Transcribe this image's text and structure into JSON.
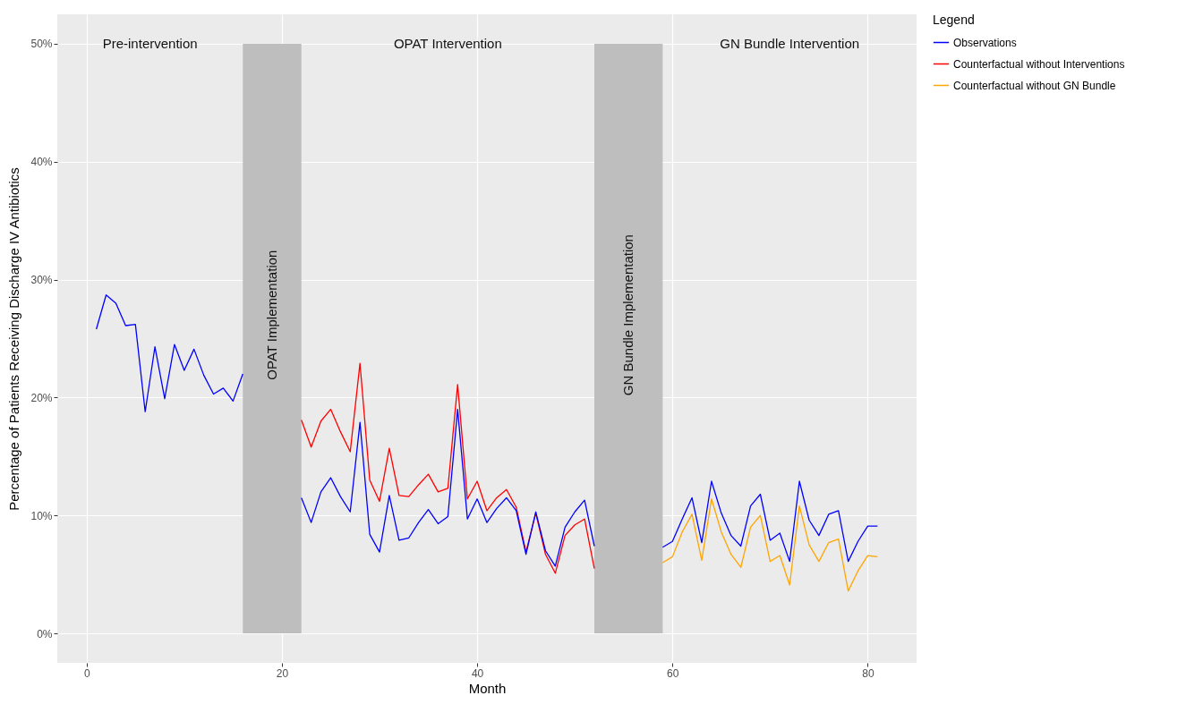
{
  "chart_data": {
    "type": "line",
    "xlabel": "Month",
    "ylabel": "Percentage of Patients Receiving Discharge IV  Antibiotics",
    "legend_title": "Legend",
    "legend": "right",
    "grid": true,
    "line_style": "solid",
    "xlim": [
      -3,
      85
    ],
    "xticks": [
      0,
      20,
      40,
      60,
      80
    ],
    "ylim": [
      -2.5,
      52.5
    ],
    "yticks": [
      {
        "value": 0,
        "label": "0%"
      },
      {
        "value": 10,
        "label": "10%"
      },
      {
        "value": 20,
        "label": "20%"
      },
      {
        "value": 30,
        "label": "30%"
      },
      {
        "value": 40,
        "label": "40%"
      },
      {
        "value": 50,
        "label": "50%"
      }
    ],
    "series": [
      {
        "name": "Observations",
        "color": "#0000ff",
        "x": [
          1,
          2,
          3,
          4,
          5,
          6,
          7,
          8,
          9,
          10,
          11,
          12,
          13,
          14,
          15,
          16
        ],
        "values": [
          25.8,
          28.7,
          28.0,
          26.1,
          26.2,
          18.8,
          24.3,
          19.9,
          24.5,
          22.3,
          24.1,
          21.9,
          20.3,
          20.8,
          19.7,
          22.0
        ]
      },
      {
        "name": "Counterfactual without Interventions",
        "color": "#ff0000",
        "x": [
          22,
          23,
          24,
          25,
          26,
          27,
          28,
          29,
          30,
          31,
          32,
          33,
          34,
          35,
          36,
          37,
          38,
          39,
          40,
          41,
          42,
          43,
          44,
          45,
          46,
          47,
          48,
          49,
          50,
          51,
          52
        ],
        "values": [
          18.1,
          15.8,
          18.0,
          19.0,
          17.1,
          15.4,
          22.9,
          13.0,
          11.2,
          15.7,
          11.7,
          11.6,
          12.6,
          13.5,
          12.0,
          12.3,
          21.1,
          11.4,
          12.9,
          10.4,
          11.5,
          12.2,
          10.7,
          6.9,
          10.2,
          6.7,
          5.1,
          8.3,
          9.2,
          9.7,
          5.5
        ]
      },
      {
        "name": "Counterfactual without GN Bundle",
        "color": "#ffa500",
        "x": [
          59,
          60,
          61,
          62,
          63,
          64,
          65,
          66,
          67,
          68,
          69,
          70,
          71,
          72,
          73,
          74,
          75,
          76,
          77,
          78,
          79,
          80,
          81
        ],
        "values": [
          6.0,
          6.5,
          8.6,
          10.1,
          6.2,
          11.4,
          8.6,
          6.7,
          5.6,
          9.0,
          10.0,
          6.1,
          6.6,
          4.1,
          10.8,
          7.5,
          6.1,
          7.7,
          8.0,
          3.6,
          5.3,
          6.6,
          6.5
        ]
      },
      {
        "color": "#0000ff",
        "x": [
          22,
          23,
          24,
          25,
          26,
          27,
          28,
          29,
          30,
          31,
          32,
          33,
          34,
          35,
          36,
          37,
          38,
          39,
          40,
          41,
          42,
          43,
          44,
          45,
          46,
          47,
          48,
          49,
          50,
          51,
          52
        ],
        "values": [
          11.5,
          9.4,
          12.0,
          13.2,
          11.6,
          10.3,
          17.9,
          8.4,
          6.9,
          11.7,
          7.9,
          8.1,
          9.4,
          10.5,
          9.3,
          9.9,
          19.0,
          9.7,
          11.4,
          9.4,
          10.6,
          11.5,
          10.4,
          6.7,
          10.3,
          7.0,
          5.7,
          9.0,
          10.3,
          11.3,
          7.4
        ]
      },
      {
        "color": "#0000ff",
        "x": [
          59,
          60,
          61,
          62,
          63,
          64,
          65,
          66,
          67,
          68,
          69,
          70,
          71,
          72,
          73,
          74,
          75,
          76,
          77,
          78,
          79,
          80,
          81
        ],
        "values": [
          7.3,
          7.8,
          9.7,
          11.5,
          7.7,
          12.9,
          10.2,
          8.3,
          7.4,
          10.8,
          11.8,
          7.9,
          8.5,
          6.1,
          12.9,
          9.6,
          8.3,
          10.1,
          10.4,
          6.1,
          7.8,
          9.1,
          9.1
        ]
      }
    ],
    "bands": [
      {
        "axis": "x",
        "from": 16,
        "to": 22,
        "label": "OPAT Implementation",
        "color": "#bebebe"
      },
      {
        "axis": "x",
        "from": 52,
        "to": 59,
        "label": "GN Bundle Implementation",
        "color": "#bebebe"
      }
    ],
    "annotations": [
      "Pre-intervention",
      "OPAT Intervention",
      "GN Bundle Intervention"
    ]
  }
}
